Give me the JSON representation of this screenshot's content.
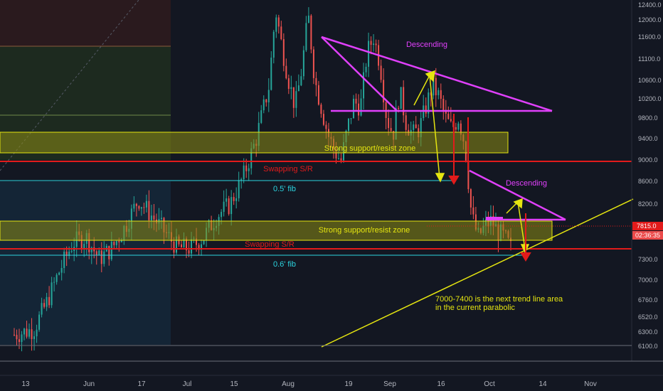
{
  "colors": {
    "background": "#131722",
    "axis_text": "#b2b5be",
    "candle_up": "#26a69a",
    "candle_down": "#ef5350",
    "magenta": "#e040fb",
    "magenta_text": "#e040fb",
    "yellow": "#e5e510",
    "red": "#e21b1b",
    "cyan": "#2bd4e0",
    "zone_fill": "#8c8c14"
  },
  "chart_data": {
    "type": "candlestick",
    "title": "",
    "y_axis": {
      "ticks": [
        "12400.0",
        "12000.0",
        "11600.0",
        "11100.0",
        "10600.0",
        "10200.0",
        "9800.0",
        "9400.0",
        "9000.0",
        "8600.0",
        "8200.0",
        "7800.0",
        "7300.0",
        "7000.0",
        "6760.0",
        "6520.0",
        "6300.0",
        "6100.0"
      ],
      "last_price": "7815.0",
      "countdown": "02:36:35"
    },
    "x_axis": {
      "ticks": [
        "13",
        "Jun",
        "17",
        "Jul",
        "15",
        "Aug",
        "19",
        "Sep",
        "16",
        "Oct",
        "14",
        "Nov"
      ]
    },
    "series": [
      {
        "name": "",
        "anchors": [
          [
            0,
            6300
          ],
          [
            6,
            6400
          ],
          [
            10,
            6900
          ],
          [
            14,
            7500
          ],
          [
            18,
            8000
          ],
          [
            22,
            8100
          ],
          [
            26,
            7700
          ],
          [
            30,
            7900
          ],
          [
            34,
            8300
          ],
          [
            38,
            8800
          ],
          [
            42,
            8500
          ],
          [
            46,
            8200
          ],
          [
            50,
            7900
          ],
          [
            54,
            7900
          ],
          [
            58,
            8100
          ],
          [
            62,
            8500
          ],
          [
            66,
            8700
          ],
          [
            70,
            9200
          ],
          [
            74,
            9900
          ],
          [
            78,
            10900
          ],
          [
            80,
            12300
          ],
          [
            82,
            11600
          ],
          [
            84,
            11000
          ],
          [
            86,
            10500
          ],
          [
            88,
            11200
          ],
          [
            90,
            12200
          ],
          [
            92,
            11000
          ],
          [
            94,
            10500
          ],
          [
            96,
            10000
          ],
          [
            98,
            9700
          ],
          [
            100,
            9500
          ],
          [
            102,
            10100
          ],
          [
            104,
            10600
          ],
          [
            106,
            10500
          ],
          [
            108,
            11500
          ],
          [
            110,
            11800
          ],
          [
            112,
            11300
          ],
          [
            114,
            10300
          ],
          [
            116,
            10000
          ],
          [
            118,
            10800
          ],
          [
            120,
            10200
          ],
          [
            122,
            10000
          ],
          [
            124,
            10100
          ],
          [
            126,
            10500
          ],
          [
            128,
            10900
          ],
          [
            130,
            10700
          ],
          [
            132,
            10300
          ],
          [
            134,
            10100
          ],
          [
            136,
            10300
          ],
          [
            138,
            9800
          ],
          [
            140,
            8500
          ],
          [
            142,
            8100
          ],
          [
            144,
            8300
          ],
          [
            146,
            8400
          ],
          [
            148,
            8200
          ],
          [
            150,
            8100
          ],
          [
            152,
            7900
          ]
        ]
      }
    ],
    "annotations": [
      {
        "id": "desc-top",
        "label": "Descending",
        "type": "triangle"
      },
      {
        "id": "zone-top",
        "label": "Strong support/resist zone",
        "type": "zone"
      },
      {
        "id": "swap-top",
        "label": "Swapping S/R",
        "type": "hline"
      },
      {
        "id": "fib-05",
        "label": "0.5' fib",
        "type": "hline"
      },
      {
        "id": "desc-bottom",
        "label": "Descending",
        "type": "triangle"
      },
      {
        "id": "zone-bottom",
        "label": "Strong support/resist zone",
        "type": "zone"
      },
      {
        "id": "swap-bottom",
        "label": "Swapping S/R",
        "type": "hline"
      },
      {
        "id": "fib-06",
        "label": "0.6' fib",
        "type": "hline"
      },
      {
        "id": "trend-note",
        "label": "7000-7400 is the next trend line area in the current parabolic",
        "type": "text"
      }
    ]
  },
  "labels": {
    "desc_top": "Descending",
    "zone_top": "Strong support/resist zone",
    "swap_top": "Swapping S/R",
    "fib_05": "0.5' fib",
    "desc_bottom": "Descending",
    "zone_bottom": "Strong support/resist zone",
    "swap_bottom": "Swapping S/R",
    "fib_06": "0.6' fib",
    "note_line1": "7000-7400 is the next trend line area",
    "note_line2": "in the current parabolic"
  }
}
